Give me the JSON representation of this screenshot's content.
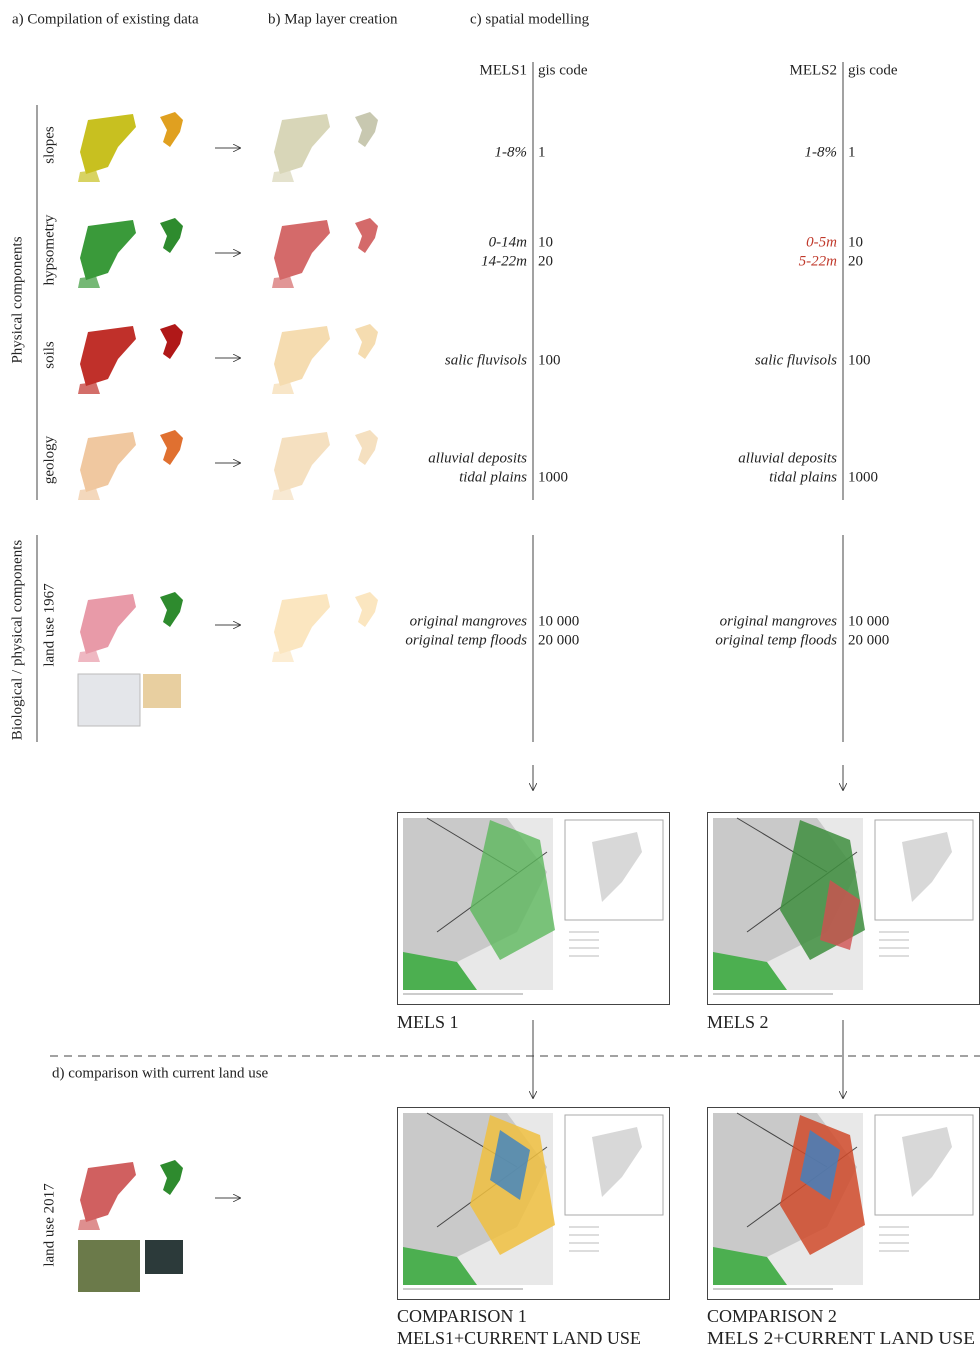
{
  "headers": {
    "a": "a) Compilation of existing data",
    "b": "b) Map layer creation",
    "c": "c) spatial modelling",
    "d": "d) comparison with current land use"
  },
  "groups": [
    "Physical components",
    "Biological / physical components"
  ],
  "layers": [
    "slopes",
    "hypsometry",
    "soils",
    "geology",
    "land use 1967",
    "land use 2017"
  ],
  "models": [
    {
      "name": "MELS1",
      "code_header": "gis code",
      "entries": [
        [
          {
            "label": "1-8%",
            "code": "1"
          }
        ],
        [
          {
            "label": "0-14m",
            "code": "10"
          },
          {
            "label": "14-22m",
            "code": "20"
          }
        ],
        [
          {
            "label": "salic fluvisols",
            "code": "100"
          }
        ],
        [
          {
            "label": "alluvial deposits"
          },
          {
            "label": "tidal plains",
            "code": "1000"
          }
        ],
        [
          {
            "label": "original mangroves",
            "code": "10 000"
          },
          {
            "label": "original temp floods",
            "code": "20 000"
          }
        ]
      ]
    },
    {
      "name": "MELS2",
      "code_header": "gis code",
      "entries": [
        [
          {
            "label": "1-8%",
            "code": "1"
          }
        ],
        [
          {
            "label": "0-5m",
            "code": "10",
            "color": "#c0392b"
          },
          {
            "label": "5-22m",
            "code": "20",
            "color": "#c0392b"
          }
        ],
        [
          {
            "label": "salic fluvisols",
            "code": "100"
          }
        ],
        [
          {
            "label": "alluvial deposits"
          },
          {
            "label": "tidal plains",
            "code": "1000"
          }
        ],
        [
          {
            "label": "original mangroves",
            "code": "10 000"
          },
          {
            "label": "original temp floods",
            "code": "20 000"
          }
        ]
      ]
    }
  ],
  "results": [
    "MELS 1",
    "MELS 2"
  ],
  "comparisons": [
    [
      "COMPARISON 1",
      "MELS1+CURRENT LAND USE"
    ],
    [
      "COMPARISON 2",
      "MELS 2+CURRENT LAND USE"
    ]
  ]
}
